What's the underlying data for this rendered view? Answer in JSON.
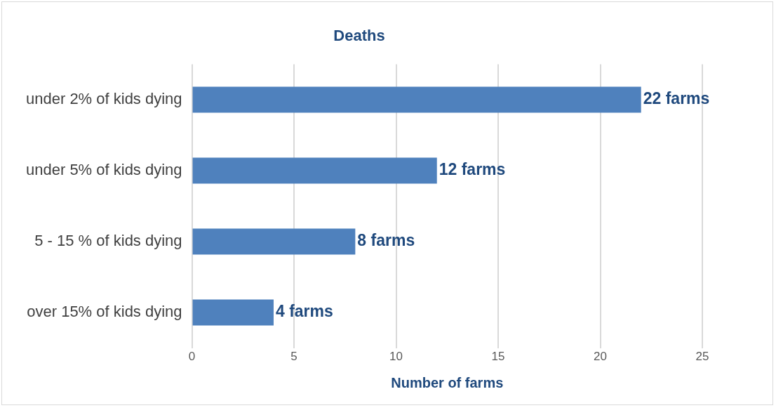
{
  "chart_data": {
    "type": "bar",
    "orientation": "horizontal",
    "title": "Deaths",
    "xlabel": "Number of farms",
    "categories": [
      "under 2% of kids dying",
      "under 5% of kids dying",
      "5 - 15 % of kids dying",
      "over 15% of kids dying"
    ],
    "values": [
      22,
      12,
      8,
      4
    ],
    "color": "#4f81bd",
    "value_labels": [
      "22 farms",
      "12 farms",
      "8 farms",
      "4 farms"
    ],
    "xlim": [
      0,
      25
    ],
    "xticks": [
      0,
      5,
      10,
      15,
      20,
      25
    ],
    "grid": "x",
    "legend": false
  }
}
